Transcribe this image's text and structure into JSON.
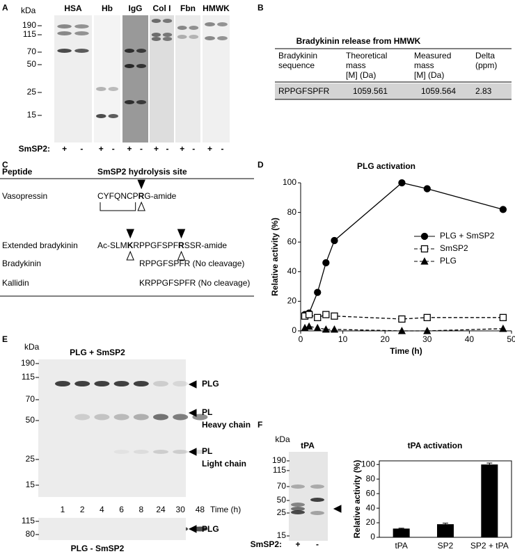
{
  "panel_a": {
    "letter": "A",
    "unit": "kDa",
    "mw": [
      "190",
      "115",
      "70",
      "50",
      "25",
      "15"
    ],
    "lanes": [
      "HSA",
      "Hb",
      "IgG",
      "Col I",
      "Fbn",
      "HMWK"
    ],
    "row_label": "SmSP2:",
    "signs": [
      "+",
      "-"
    ]
  },
  "panel_b": {
    "letter": "B",
    "title": "Bradykinin release from HMWK",
    "headers": [
      [
        "Bradykinin",
        "sequence"
      ],
      [
        "Theoretical",
        "mass",
        "[M] (Da)"
      ],
      [
        "Measured",
        "mass",
        "[M] (Da)"
      ],
      [
        "Delta",
        "(ppm)"
      ]
    ],
    "rows": [
      [
        "RPPGFSPFR",
        "1059.561",
        "1059.564",
        "2.83"
      ]
    ]
  },
  "panel_c": {
    "letter": "C",
    "headers": [
      "Peptide",
      "SmSP2 hydrolysis site"
    ],
    "rows": [
      {
        "peptide": "Vasopressin",
        "site": [
          "CYFQNCP",
          "R",
          "G-amide"
        ]
      },
      {
        "peptide": "Extended bradykinin",
        "site": [
          "Ac-SLM",
          "K",
          "RPPGFSPF",
          "R",
          "SSR-amide"
        ]
      },
      {
        "peptide": "Bradykinin",
        "site": [
          "RPPGFSPFR (No cleavage)"
        ]
      },
      {
        "peptide": "Kallidin",
        "site": [
          "KRPPGFSPFR (No cleavage)"
        ]
      }
    ]
  },
  "panel_e": {
    "letter": "E",
    "unit": "kDa",
    "title": "PLG + SmSP2",
    "mw": [
      "190",
      "115",
      "70",
      "50",
      "25",
      "15"
    ],
    "lanes": [
      "1",
      "2",
      "4",
      "6",
      "8",
      "24",
      "30",
      "48"
    ],
    "lane_unit": "Time (h)",
    "bands": [
      "PLG",
      "PL",
      "Heavy chain",
      "PL",
      "Light chain"
    ],
    "control_mw": [
      "115",
      "80"
    ],
    "control_band": "PLG",
    "control_title": "PLG - SmSP2"
  },
  "panel_f": {
    "letter": "F",
    "unit": "kDa",
    "lane": "tPA",
    "mw": [
      "190",
      "115",
      "70",
      "50",
      "25",
      "15"
    ],
    "row_label": "SmSP2:",
    "signs": [
      "+",
      "-"
    ]
  },
  "chart_data": [
    {
      "type": "line",
      "label": "D",
      "title": "PLG activation",
      "x_label": "Time (h)",
      "y_label": "Relative activity (%)",
      "x": [
        1,
        2,
        4,
        6,
        8,
        24,
        30,
        48
      ],
      "series": [
        {
          "name": "PLG + SmSP2",
          "color": "#000000",
          "marker": "circle",
          "marker_filled": true,
          "dashed": false,
          "values": [
            11,
            12,
            26,
            46,
            61,
            100,
            96,
            82
          ]
        },
        {
          "name": "SmSP2",
          "color": "#000000",
          "marker": "square",
          "marker_filled": false,
          "dashed": true,
          "values": [
            10,
            11,
            9,
            11,
            10,
            8,
            9,
            9
          ]
        },
        {
          "name": "PLG",
          "color": "#000000",
          "marker": "triangle",
          "marker_filled": true,
          "dashed": true,
          "values": [
            2,
            3,
            2,
            1,
            1,
            0,
            0,
            1.5
          ]
        }
      ],
      "xlim": [
        0,
        50
      ],
      "ylim": [
        0,
        100
      ],
      "xticks": [
        0,
        10,
        20,
        30,
        40,
        50
      ],
      "yticks": [
        0,
        20,
        40,
        60,
        80,
        100
      ],
      "legend": "right"
    },
    {
      "type": "bar",
      "title": "tPA activation",
      "y_label": "Relative activity (%)",
      "categories": [
        "tPA",
        "SP2",
        "SP2 + tPA"
      ],
      "values": [
        12,
        18,
        100
      ],
      "errors": [
        0.5,
        1.5,
        2
      ],
      "color": "#000000",
      "ylim": [
        0,
        105
      ],
      "yticks": [
        0,
        20,
        40,
        60,
        80,
        100
      ]
    }
  ]
}
